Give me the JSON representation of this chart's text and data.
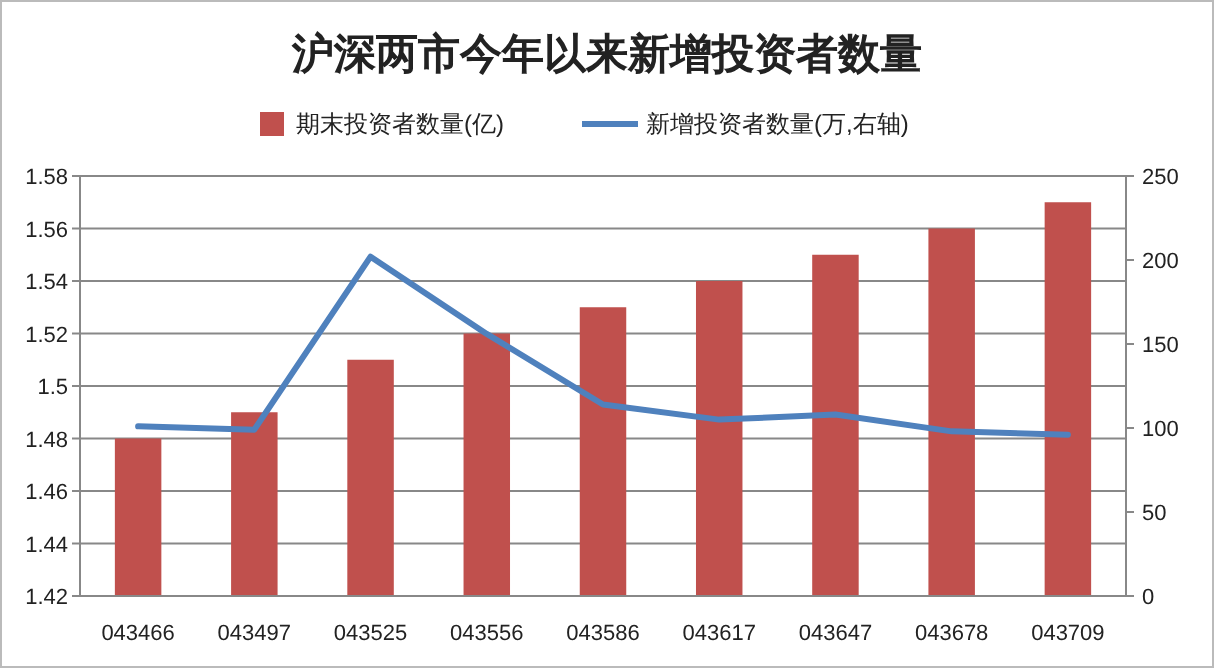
{
  "chart_data": {
    "type": "bar",
    "title": "沪深两市今年以来新增投资者数量",
    "categories": [
      "043466",
      "043497",
      "043525",
      "043556",
      "043586",
      "043617",
      "043647",
      "043678",
      "043709"
    ],
    "series": [
      {
        "name": "期末投资者数量(亿)",
        "color": "#c0504d",
        "values": [
          1.48,
          1.49,
          1.51,
          1.52,
          1.53,
          1.54,
          1.55,
          1.56,
          1.57
        ]
      },
      {
        "name": "新增投资者数量(万,右轴)",
        "type": "line",
        "axis": "y2",
        "color": "#4f81bd",
        "values": [
          101,
          99,
          202,
          156,
          114,
          105,
          108,
          98,
          96
        ]
      }
    ],
    "ylim": [
      1.42,
      1.58
    ],
    "yticks": [
      1.42,
      1.44,
      1.46,
      1.48,
      1.5,
      1.52,
      1.54,
      1.56,
      1.58
    ],
    "y2lim": [
      0,
      250
    ],
    "y2ticks": [
      0,
      50,
      100,
      150,
      200,
      250
    ],
    "grid": "y",
    "legend": "top",
    "marker": "none",
    "line_style": "solid"
  }
}
